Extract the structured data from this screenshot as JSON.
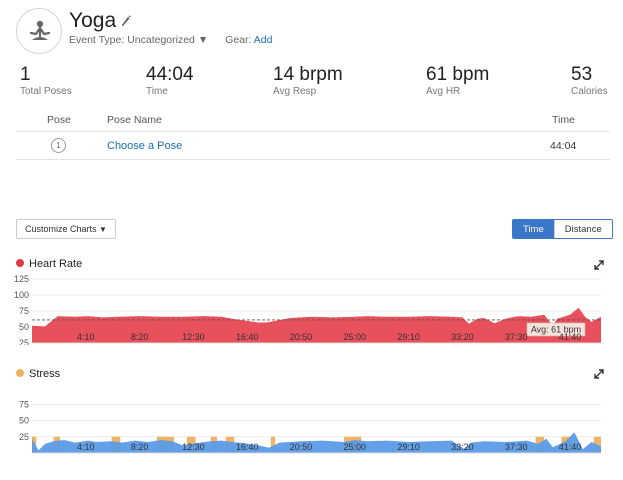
{
  "activity": {
    "title": "Yoga",
    "event_type_label": "Event Type:",
    "event_type_value": "Uncategorized",
    "gear_label": "Gear:",
    "gear_link": "Add",
    "avatar_icon": "yoga-person-icon"
  },
  "stats": [
    {
      "value": "1",
      "label": "Total Poses"
    },
    {
      "value": "44:04",
      "label": "Time"
    },
    {
      "value": "14 brpm",
      "label": "Avg Resp"
    },
    {
      "value": "61 bpm",
      "label": "Avg HR"
    },
    {
      "value": "53",
      "label": "Calories"
    }
  ],
  "pose_table": {
    "headers": {
      "pose": "Pose",
      "pose_name": "Pose Name",
      "time": "Time"
    },
    "rows": [
      {
        "number": "1",
        "name": "Choose a Pose",
        "time": "44:04"
      }
    ]
  },
  "controls": {
    "customize_label": "Customize Charts",
    "time_label": "Time",
    "distance_label": "Distance"
  },
  "chart_data": [
    {
      "type": "area",
      "title": "Heart Rate",
      "color": "#e8505b",
      "y_ticks": [
        "125",
        "100",
        "75",
        "50",
        "25"
      ],
      "ylim": [
        25,
        125
      ],
      "x_ticks": [
        "4:10",
        "8:20",
        "12:30",
        "16:40",
        "20:50",
        "25:00",
        "29:10",
        "33:20",
        "37:30",
        "41:40"
      ],
      "x_range_seconds": [
        0,
        2644
      ],
      "average_label": "Avg: 61 bpm",
      "average": 61,
      "series": [
        {
          "x": [
            0,
            60,
            120,
            200,
            260,
            330,
            400,
            500,
            600,
            700,
            800,
            880,
            930,
            990,
            1050,
            1090,
            1200,
            1300,
            1400,
            1500,
            1560,
            1650,
            1750,
            1850,
            1950,
            2000,
            2030,
            2070,
            2100,
            2150,
            2200,
            2260,
            2320,
            2380,
            2420,
            2440,
            2470,
            2500,
            2540,
            2570,
            2600,
            2644
          ],
          "y": [
            52,
            51,
            67,
            66,
            67,
            65,
            66,
            67,
            66,
            66,
            67,
            66,
            63,
            60,
            57,
            57,
            64,
            66,
            65,
            66,
            67,
            66,
            66,
            67,
            66,
            65,
            55,
            63,
            64,
            56,
            63,
            67,
            66,
            69,
            52,
            63,
            66,
            69,
            80,
            66,
            58,
            66
          ]
        }
      ]
    },
    {
      "type": "area",
      "title": "Stress",
      "color": "#5b9be6",
      "highlight_color": "#f0b36a",
      "y_ticks": [
        "75",
        "50",
        "25"
      ],
      "ylim": [
        0,
        100
      ],
      "x_ticks": [
        "4:10",
        "8:20",
        "12:30",
        "16:40",
        "20:50",
        "25:00",
        "29:10",
        "33:20",
        "37:30",
        "41:40"
      ],
      "x_range_seconds": [
        0,
        2644
      ],
      "highlight_ranges_seconds": [
        [
          0,
          20
        ],
        [
          100,
          130
        ],
        [
          370,
          410
        ],
        [
          580,
          660
        ],
        [
          720,
          760
        ],
        [
          830,
          860
        ],
        [
          900,
          940
        ],
        [
          1110,
          1130
        ],
        [
          1450,
          1530
        ],
        [
          2340,
          2380
        ],
        [
          2460,
          2510
        ],
        [
          2610,
          2644
        ]
      ],
      "series": [
        {
          "x": [
            0,
            30,
            60,
            100,
            150,
            200,
            260,
            300,
            370,
            420,
            480,
            540,
            600,
            650,
            700,
            780,
            830,
            880,
            930,
            990,
            1050,
            1100,
            1150,
            1250,
            1350,
            1450,
            1500,
            1560,
            1650,
            1750,
            1850,
            1950,
            2010,
            2040,
            2100,
            2200,
            2300,
            2350,
            2390,
            2420,
            2480,
            2520,
            2560,
            2600,
            2644
          ],
          "y": [
            22,
            4,
            14,
            18,
            20,
            16,
            19,
            17,
            18,
            16,
            19,
            17,
            20,
            18,
            12,
            16,
            18,
            19,
            17,
            15,
            12,
            8,
            16,
            18,
            19,
            17,
            20,
            18,
            19,
            17,
            18,
            19,
            6,
            16,
            18,
            17,
            19,
            14,
            22,
            9,
            18,
            32,
            6,
            17,
            10
          ]
        }
      ]
    }
  ]
}
